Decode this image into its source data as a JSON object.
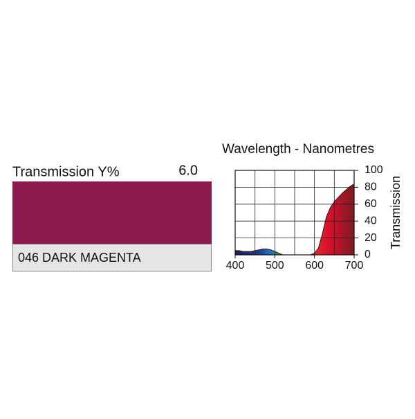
{
  "swatch": {
    "label": "Transmission Y%",
    "value": "6.0",
    "color": "#8c1a4f",
    "name": "046 DARK MAGENTA"
  },
  "chart_data": {
    "type": "area",
    "title": "Wavelength - Nanometres",
    "y_label": "Transmission",
    "x": [
      400,
      410,
      420,
      430,
      440,
      450,
      460,
      470,
      480,
      490,
      500,
      510,
      520,
      530,
      540,
      550,
      560,
      570,
      580,
      590,
      600,
      610,
      620,
      630,
      640,
      650,
      660,
      670,
      680,
      690,
      700
    ],
    "values": [
      5,
      5,
      4,
      4,
      4,
      5,
      6,
      7,
      7,
      6,
      4,
      2,
      0,
      0,
      0,
      0,
      0,
      0,
      0,
      0,
      2,
      8,
      25,
      45,
      56,
      63,
      68,
      73,
      77,
      81,
      84
    ],
    "xlim": [
      400,
      700
    ],
    "ylim": [
      0,
      100
    ],
    "xticks": [
      400,
      500,
      600,
      700
    ],
    "xgrid": [
      400,
      450,
      500,
      550,
      600,
      650,
      700
    ],
    "yticks": [
      0,
      20,
      40,
      60,
      80,
      100
    ],
    "grid": true
  }
}
